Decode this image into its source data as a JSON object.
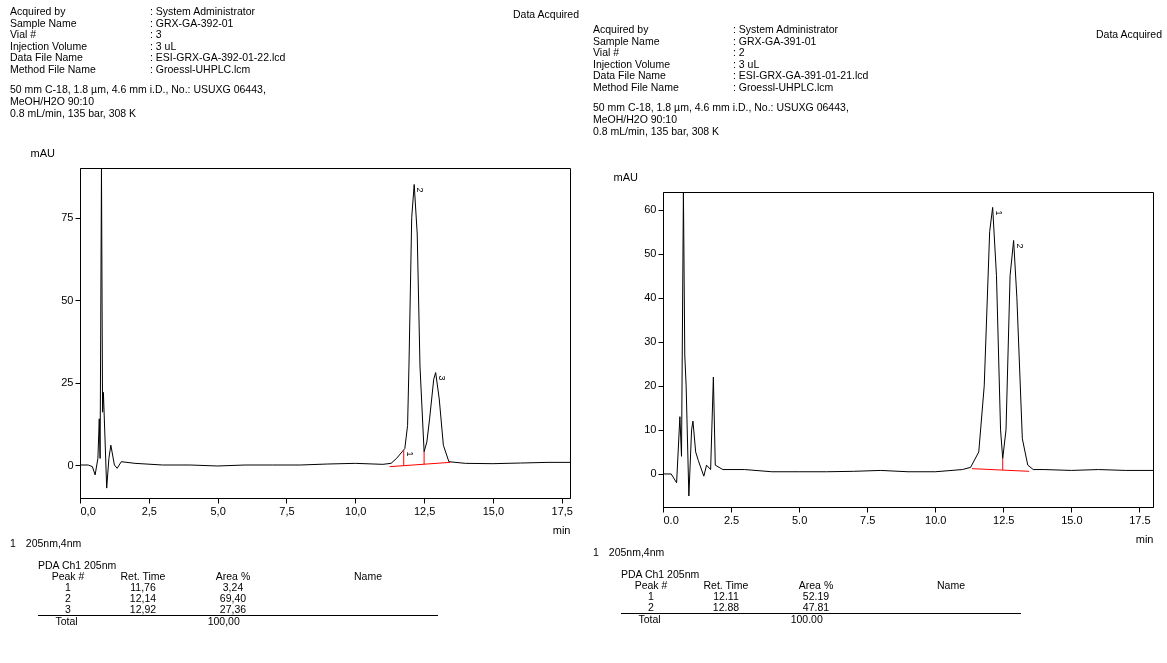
{
  "chart_data": [
    {
      "type": "line",
      "xlabel": "min",
      "ylabel": "mAU",
      "xlim": [
        0,
        17.8
      ],
      "ylim": [
        -10,
        90
      ],
      "xticks": [
        {
          "value": 0,
          "label": "0,0"
        },
        {
          "value": 2.5,
          "label": "2,5"
        },
        {
          "value": 5,
          "label": "5,0"
        },
        {
          "value": 7.5,
          "label": "7,5"
        },
        {
          "value": 10,
          "label": "10,0"
        },
        {
          "value": 12.5,
          "label": "12,5"
        },
        {
          "value": 15,
          "label": "15,0"
        },
        {
          "value": 17.5,
          "label": "17,5"
        }
      ],
      "yticks": [
        0,
        25,
        50,
        75
      ],
      "grid": false,
      "marker": "none",
      "series": [
        {
          "color": "#000000",
          "x": [
            0,
            0.3,
            0.45,
            0.55,
            0.65,
            0.7,
            0.73,
            0.78,
            0.82,
            0.85,
            0.9,
            0.97,
            1.05,
            1.12,
            1.25,
            1.35,
            1.5,
            2,
            3,
            4,
            5,
            6,
            7,
            8,
            9,
            10,
            11,
            11.3,
            11.5,
            11.7,
            11.8,
            11.9,
            11.95,
            12.05,
            12.14,
            12.25,
            12.35,
            12.5,
            12.6,
            12.7,
            12.85,
            12.92,
            13.05,
            13.2,
            13.4,
            14,
            15,
            16,
            17,
            17.8
          ],
          "values": [
            0,
            0,
            -0.5,
            -3,
            2,
            14,
            2,
            90,
            16,
            22,
            10,
            -7,
            2,
            6,
            0,
            -1,
            1,
            0.5,
            0,
            0,
            -0.3,
            0,
            0,
            0,
            0.3,
            0.5,
            0.2,
            0.5,
            2,
            4,
            5,
            12,
            30,
            75,
            85,
            70,
            30,
            4,
            7,
            14,
            26,
            28,
            20,
            6,
            1,
            0.5,
            0.4,
            0.6,
            0.8,
            0.8
          ]
        },
        {
          "color": "#ff0000",
          "x": [
            11.25,
            13.45
          ],
          "values": [
            -0.5,
            0.8
          ]
        },
        {
          "color": "#ff0000",
          "x": [
            11.76,
            11.76
          ],
          "values": [
            -0.2,
            4.5
          ]
        },
        {
          "color": "#ff0000",
          "x": [
            12.5,
            12.5
          ],
          "values": [
            0.2,
            4
          ]
        }
      ],
      "annotations": [
        "Acquired by\t: System Administrator",
        "Sample Name\t: GRX-GA-392-01",
        "Vial #\t: 3",
        "Injection Volume\t: 3 uL",
        "Data File Name\t: ESI-GRX-GA-392-01-22.lcd",
        "Method File Name\t: Groessl-UHPLC.lcm",
        "Data Acquired",
        "50 mm C-18, 1.8 µm, 4.6 mm i.D., No.: USUXG 06443,",
        "MeOH/H2O 90:10",
        "0.8 mL/min, 135 bar, 308 K",
        "1\t205nm,4nm",
        "PDA Ch1 205nm",
        "Peak #\tRet. Time\tArea %\tName",
        "1\t11,76\t3,24\t",
        "2\t12,14\t69,40\t",
        "3\t12,92\t27,36\t",
        "Total\t\t100,00\t",
        {
          "text": "1",
          "x": 11.76,
          "y": 5
        },
        {
          "text": "2",
          "x": 12.14,
          "y": 85
        },
        {
          "text": "3",
          "x": 12.92,
          "y": 28
        }
      ]
    },
    {
      "type": "line",
      "xlabel": "min",
      "ylabel": "mAU",
      "xlim": [
        0,
        18
      ],
      "ylim": [
        -7.5,
        64
      ],
      "xticks": [
        {
          "value": 0,
          "label": "0.0"
        },
        {
          "value": 2.5,
          "label": "2.5"
        },
        {
          "value": 5,
          "label": "5.0"
        },
        {
          "value": 7.5,
          "label": "7.5"
        },
        {
          "value": 10,
          "label": "10.0"
        },
        {
          "value": 12.5,
          "label": "12.5"
        },
        {
          "value": 15,
          "label": "15.0"
        },
        {
          "value": 17.5,
          "label": "17.5"
        }
      ],
      "yticks": [
        0,
        10,
        20,
        30,
        40,
        50,
        60
      ],
      "grid": false,
      "marker": "none",
      "series": [
        {
          "color": "#000000",
          "x": [
            0,
            0.3,
            0.5,
            0.62,
            0.68,
            0.75,
            0.8,
            0.85,
            0.95,
            1.05,
            1.1,
            1.2,
            1.3,
            1.5,
            1.6,
            1.75,
            1.85,
            1.92,
            2.2,
            3,
            4,
            5,
            6,
            7,
            8,
            9,
            10,
            11,
            11.3,
            11.6,
            11.8,
            12,
            12.11,
            12.25,
            12.4,
            12.48,
            12.6,
            12.75,
            12.88,
            13,
            13.2,
            13.4,
            13.6,
            14,
            15,
            16,
            17,
            18
          ],
          "values": [
            0,
            0,
            -2,
            13,
            4,
            64,
            27,
            20,
            -5,
            10,
            12,
            5,
            3,
            -0.5,
            2,
            1,
            22,
            2,
            1,
            1,
            0.5,
            0.5,
            0.5,
            0.6,
            0.8,
            0.5,
            0.5,
            1,
            1.5,
            5,
            20,
            55,
            60.5,
            45,
            10,
            3.5,
            10,
            45,
            53,
            40,
            8,
            2,
            1,
            1,
            0.8,
            1,
            0.8,
            0.8
          ]
        },
        {
          "color": "#ff0000",
          "x": [
            11.35,
            13.45
          ],
          "values": [
            1.2,
            0.6
          ]
        },
        {
          "color": "#ff0000",
          "x": [
            12.48,
            12.48
          ],
          "values": [
            0.9,
            3.5
          ]
        }
      ],
      "annotations": [
        "Acquired by\t: System Administrator",
        "Sample Name\t: GRX-GA-391-01",
        "Vial #\t: 2",
        "Injection Volume\t: 3 uL",
        "Data File Name\t: ESI-GRX-GA-391-01-21.lcd",
        "Method File Name\t: Groessl-UHPLC.lcm",
        "Data Acquired",
        "50 mm C-18, 1.8 µm, 4.6 mm i.D., No.: USUXG 06443,",
        "MeOH/H2O 90:10",
        "0.8 mL/min, 135 bar, 308 K",
        "1\t205nm,4nm",
        "PDA Ch1 205nm",
        "Peak #\tRet. Time\tArea %\tName",
        "1\t12.11\t52.19\t",
        "2\t12.88\t47.81\t",
        "Total\t\t100.00\t",
        {
          "text": "1",
          "x": 12.11,
          "y": 60.5
        },
        {
          "text": "2",
          "x": 12.88,
          "y": 53
        }
      ]
    }
  ]
}
